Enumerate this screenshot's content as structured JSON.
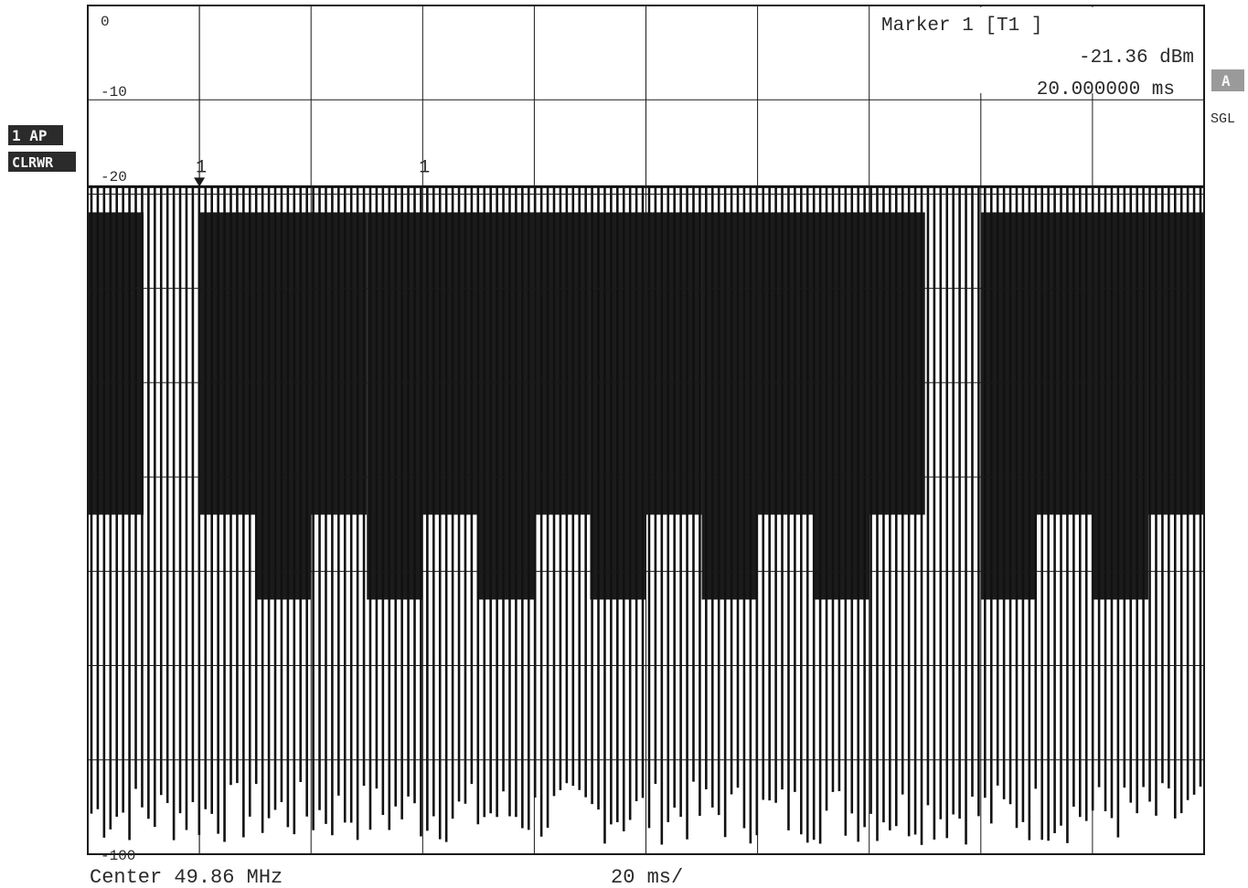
{
  "side_labels": {
    "trace": "1 AP",
    "mode": "CLRWR",
    "flag": "A",
    "sweep": "SGL"
  },
  "marker_box": {
    "title": "Marker 1 [T1 ]",
    "level": "-21.36 dBm",
    "time": "20.000000 ms"
  },
  "footer": {
    "center": "Center 49.86 MHz",
    "span": "20 ms/"
  },
  "chart_data": {
    "type": "line",
    "title": "",
    "xlabel": "",
    "ylabel": "",
    "y_unit": "dBm",
    "x_unit": "ms",
    "xlim": [
      0,
      200
    ],
    "ylim": [
      -100,
      0
    ],
    "y_tick_labels": [
      {
        "value": 0,
        "label": "0"
      },
      {
        "value": -10,
        "label": "-10"
      },
      {
        "value": -20,
        "label": "-20"
      },
      {
        "value": -100,
        "label": "-100"
      }
    ],
    "grid": true,
    "grid_divisions": {
      "x": 10,
      "y": 9
    },
    "reference_level_dbm": -21.36,
    "pulse_trace": {
      "description_free_values": true,
      "pulse_top_dbm": -21.36,
      "floor_dbm": -100,
      "dense_segments_ms": [
        {
          "from": 0,
          "to": 10,
          "min_dbm": -60
        },
        {
          "from": 20,
          "to": 30,
          "min_dbm": -60
        },
        {
          "from": 30,
          "to": 40,
          "min_dbm": -70
        },
        {
          "from": 40,
          "to": 50,
          "min_dbm": -60
        },
        {
          "from": 50,
          "to": 60,
          "min_dbm": -70
        },
        {
          "from": 60,
          "to": 70,
          "min_dbm": -60
        },
        {
          "from": 70,
          "to": 80,
          "min_dbm": -70
        },
        {
          "from": 80,
          "to": 90,
          "min_dbm": -60
        },
        {
          "from": 90,
          "to": 100,
          "min_dbm": -70
        },
        {
          "from": 100,
          "to": 110,
          "min_dbm": -60
        },
        {
          "from": 110,
          "to": 120,
          "min_dbm": -70
        },
        {
          "from": 120,
          "to": 130,
          "min_dbm": -60
        },
        {
          "from": 130,
          "to": 140,
          "min_dbm": -70
        },
        {
          "from": 140,
          "to": 150,
          "min_dbm": -60
        },
        {
          "from": 160,
          "to": 170,
          "min_dbm": -70
        },
        {
          "from": 170,
          "to": 180,
          "min_dbm": -60
        },
        {
          "from": 180,
          "to": 190,
          "min_dbm": -70
        },
        {
          "from": 190,
          "to": 200,
          "min_dbm": -60
        }
      ]
    },
    "markers": [
      {
        "label": "1",
        "x": 20,
        "y": -21.36
      },
      {
        "label": "1",
        "x": 60,
        "y": -21.36
      }
    ]
  }
}
